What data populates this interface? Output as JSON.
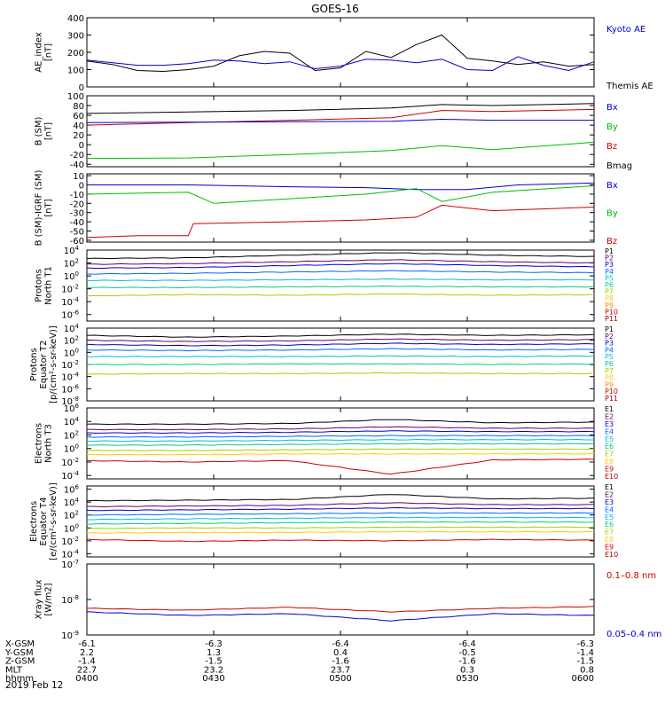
{
  "title": "GOES-16",
  "date_label": "2019 Feb 12",
  "ephemeris": {
    "rows": [
      {
        "label": "X-GSM",
        "values": [
          "-6.1",
          "-6.3",
          "-6.4",
          "-6.4",
          "-6.3"
        ]
      },
      {
        "label": "Y-GSM",
        "values": [
          "2.2",
          "1.3",
          "0.4",
          "-0.5",
          "-1.4"
        ]
      },
      {
        "label": "Z-GSM",
        "values": [
          "-1.4",
          "-1.5",
          "-1.6",
          "-1.6",
          "-1.5"
        ]
      },
      {
        "label": "MLT",
        "values": [
          "22.7",
          "23.2",
          "23.7",
          "0.3",
          "0.8"
        ]
      },
      {
        "label": "hhmm",
        "values": [
          "0400",
          "0430",
          "0500",
          "0530",
          "0600"
        ]
      }
    ]
  },
  "chart_data": [
    {
      "type": "line",
      "ylabel": [
        "AE_index",
        "[nT]"
      ],
      "y_ticks": [
        "400",
        "300",
        "200",
        "100",
        "0"
      ],
      "ylim": [
        0,
        400
      ],
      "x_ticks": [
        "0400",
        "0430",
        "0500",
        "0530",
        "0600"
      ],
      "legend": [
        {
          "label": "Kyoto AE",
          "color": "#0000cc"
        },
        {
          "label": "Themis AE",
          "color": "#000000"
        }
      ],
      "series": [
        {
          "name": "Themis AE",
          "color": "#000000",
          "x": [
            0,
            0.05,
            0.1,
            0.15,
            0.2,
            0.25,
            0.3,
            0.35,
            0.4,
            0.45,
            0.5,
            0.55,
            0.6,
            0.65,
            0.7,
            0.75,
            0.8,
            0.85,
            0.9,
            0.95,
            1
          ],
          "y": [
            150,
            130,
            95,
            90,
            100,
            120,
            180,
            205,
            195,
            95,
            110,
            205,
            170,
            245,
            300,
            165,
            150,
            130,
            145,
            120,
            130
          ]
        },
        {
          "name": "Kyoto AE",
          "color": "#0000cc",
          "x": [
            0,
            0.05,
            0.1,
            0.15,
            0.2,
            0.25,
            0.3,
            0.35,
            0.4,
            0.45,
            0.5,
            0.55,
            0.6,
            0.65,
            0.7,
            0.75,
            0.8,
            0.85,
            0.9,
            0.95,
            1
          ],
          "y": [
            155,
            140,
            125,
            125,
            135,
            155,
            150,
            135,
            145,
            105,
            120,
            160,
            155,
            140,
            160,
            100,
            95,
            175,
            125,
            95,
            145
          ]
        }
      ]
    },
    {
      "type": "line",
      "ylabel": [
        "B (SM)",
        "[nT]"
      ],
      "y_ticks": [
        "100",
        "80",
        "60",
        "40",
        "20",
        "0",
        "-20",
        "-40"
      ],
      "ylim": [
        -45,
        100
      ],
      "legend": [
        {
          "label": "Bx",
          "color": "#0000cc"
        },
        {
          "label": "By",
          "color": "#00bb00"
        },
        {
          "label": "Bz",
          "color": "#cc0000"
        },
        {
          "label": "Bmag",
          "color": "#000000"
        }
      ],
      "series": [
        {
          "name": "Bmag",
          "color": "#000000",
          "x": [
            0,
            0.2,
            0.4,
            0.6,
            0.7,
            0.8,
            1
          ],
          "y": [
            64,
            67,
            70,
            75,
            82,
            80,
            84
          ]
        },
        {
          "name": "Bz",
          "color": "#cc0000",
          "x": [
            0,
            0.2,
            0.4,
            0.6,
            0.7,
            0.8,
            1
          ],
          "y": [
            40,
            45,
            50,
            55,
            70,
            68,
            72
          ]
        },
        {
          "name": "Bx",
          "color": "#0000cc",
          "x": [
            0,
            0.2,
            0.4,
            0.6,
            0.7,
            0.8,
            1
          ],
          "y": [
            45,
            46,
            47,
            48,
            52,
            50,
            50
          ]
        },
        {
          "name": "By",
          "color": "#00bb00",
          "x": [
            0,
            0.2,
            0.4,
            0.6,
            0.7,
            0.8,
            1
          ],
          "y": [
            -28,
            -27,
            -20,
            -12,
            -2,
            -10,
            5
          ]
        }
      ]
    },
    {
      "type": "line",
      "ylabel": [
        "B (SM)-IGRF (SM)",
        "[nT]"
      ],
      "y_ticks": [
        "10",
        "0",
        "-10",
        "-20",
        "-30",
        "-40",
        "-50",
        "-60"
      ],
      "ylim": [
        -62,
        12
      ],
      "legend": [
        {
          "label": "Bx",
          "color": "#0000cc"
        },
        {
          "label": "By",
          "color": "#00bb00"
        },
        {
          "label": "Bz",
          "color": "#cc0000"
        }
      ],
      "series": [
        {
          "name": "Bx",
          "color": "#0000cc",
          "x": [
            0,
            0.2,
            0.4,
            0.55,
            0.65,
            0.75,
            0.85,
            1
          ],
          "y": [
            0,
            0,
            -2,
            -3,
            -5,
            -5,
            0,
            2
          ]
        },
        {
          "name": "By",
          "color": "#00bb00",
          "x": [
            0,
            0.2,
            0.25,
            0.4,
            0.55,
            0.65,
            0.7,
            0.8,
            1
          ],
          "y": [
            -10,
            -8,
            -20,
            -15,
            -10,
            -4,
            -18,
            -8,
            -1
          ]
        },
        {
          "name": "Bz",
          "color": "#cc0000",
          "x": [
            0,
            0.1,
            0.2,
            0.21,
            0.4,
            0.55,
            0.65,
            0.7,
            0.8,
            1
          ],
          "y": [
            -57,
            -55,
            -55,
            -42,
            -40,
            -38,
            -35,
            -22,
            -28,
            -24
          ]
        }
      ]
    },
    {
      "type": "line",
      "ylabel": [
        "Protons",
        "North T1"
      ],
      "y_ticks": [
        "10^4",
        "10^2",
        "10^0",
        "10^-2",
        "10^-4",
        "10^-6"
      ],
      "ylim_log10": [
        -7,
        4
      ],
      "legend": [
        {
          "label": "P1",
          "color": "#000000"
        },
        {
          "label": "P2",
          "color": "#660066"
        },
        {
          "label": "P3",
          "color": "#0000cc"
        },
        {
          "label": "P4",
          "color": "#0066ff"
        },
        {
          "label": "P5",
          "color": "#00bbdd"
        },
        {
          "label": "P6",
          "color": "#00cc88"
        },
        {
          "label": "P7",
          "color": "#aacc00"
        },
        {
          "label": "P8",
          "color": "#ffcc00"
        },
        {
          "label": "P9",
          "color": "#ff8800"
        },
        {
          "label": "P10",
          "color": "#cc0000"
        },
        {
          "label": "P11",
          "color": "#aa0000"
        }
      ],
      "series": [
        {
          "name": "P1",
          "color": "#000000",
          "log10_levels": [
            2.7,
            2.8,
            3.2,
            3.6,
            3.2,
            3.0
          ]
        },
        {
          "name": "P2",
          "color": "#660066",
          "log10_levels": [
            1.8,
            1.9,
            2.2,
            2.5,
            2.2,
            2.0
          ]
        },
        {
          "name": "P3",
          "color": "#0000cc",
          "log10_levels": [
            1.2,
            1.3,
            1.6,
            1.9,
            1.6,
            1.4
          ]
        },
        {
          "name": "P4",
          "color": "#0066ff",
          "log10_levels": [
            0.3,
            0.4,
            0.6,
            0.8,
            0.6,
            0.5
          ]
        },
        {
          "name": "P5",
          "color": "#00bbdd",
          "log10_levels": [
            -0.7,
            -0.7,
            -0.6,
            -0.5,
            -0.6,
            -0.6
          ]
        },
        {
          "name": "P6",
          "color": "#00cc88",
          "log10_levels": [
            -1.8,
            -1.8,
            -1.7,
            -1.6,
            -1.7,
            -1.7
          ]
        },
        {
          "name": "P7",
          "color": "#aacc00",
          "log10_levels": [
            -3.1,
            -2.9,
            -3.0,
            -2.8,
            -3.0,
            -2.9
          ]
        }
      ]
    },
    {
      "type": "line",
      "ylabel": [
        "Protons",
        "Equator T2",
        "[p/(cm²-s-sr-keV)]"
      ],
      "y_ticks": [
        "10^4",
        "10^2",
        "10^0",
        "10^-2",
        "10^-4",
        "10^-6",
        "10^-8"
      ],
      "ylim_log10": [
        -8,
        4
      ],
      "legend": [
        {
          "label": "P1",
          "color": "#000000"
        },
        {
          "label": "P2",
          "color": "#660066"
        },
        {
          "label": "P3",
          "color": "#0000cc"
        },
        {
          "label": "P4",
          "color": "#0066ff"
        },
        {
          "label": "P5",
          "color": "#00bbdd"
        },
        {
          "label": "P6",
          "color": "#00cc88"
        },
        {
          "label": "P7",
          "color": "#aacc00"
        },
        {
          "label": "P8",
          "color": "#ffcc00"
        },
        {
          "label": "P9",
          "color": "#ff8800"
        },
        {
          "label": "P10",
          "color": "#cc0000"
        },
        {
          "label": "P11",
          "color": "#aa0000"
        }
      ],
      "series": [
        {
          "name": "P1",
          "color": "#000000",
          "log10_levels": [
            2.8,
            2.5,
            2.7,
            3.0,
            2.8,
            2.9
          ]
        },
        {
          "name": "P2",
          "color": "#660066",
          "log10_levels": [
            2.0,
            1.8,
            1.9,
            2.2,
            2.0,
            2.1
          ]
        },
        {
          "name": "P3",
          "color": "#0000cc",
          "log10_levels": [
            1.3,
            1.1,
            1.2,
            1.5,
            1.3,
            1.4
          ]
        },
        {
          "name": "P4",
          "color": "#0066ff",
          "log10_levels": [
            0.4,
            0.3,
            0.4,
            0.6,
            0.4,
            0.5
          ]
        },
        {
          "name": "P5",
          "color": "#00bbdd",
          "log10_levels": [
            -0.7,
            -0.7,
            -0.7,
            -0.6,
            -0.7,
            -0.6
          ]
        },
        {
          "name": "P6",
          "color": "#00cc88",
          "log10_levels": [
            -2.0,
            -2.0,
            -1.9,
            -1.9,
            -2.0,
            -1.9
          ]
        },
        {
          "name": "P7",
          "color": "#aacc00",
          "log10_levels": [
            -3.6,
            -3.5,
            -3.5,
            -3.4,
            -3.5,
            -3.5
          ]
        }
      ]
    },
    {
      "type": "line",
      "ylabel": [
        "Electrons",
        "North T3"
      ],
      "y_ticks": [
        "10^6",
        "10^4",
        "10^2",
        "10^0",
        "10^-2",
        "10^-4"
      ],
      "ylim_log10": [
        -4.5,
        6
      ],
      "legend": [
        {
          "label": "E1",
          "color": "#000000"
        },
        {
          "label": "E2",
          "color": "#660066"
        },
        {
          "label": "E3",
          "color": "#0000cc"
        },
        {
          "label": "E4",
          "color": "#0066ff"
        },
        {
          "label": "E5",
          "color": "#00bbdd"
        },
        {
          "label": "E6",
          "color": "#00cc88"
        },
        {
          "label": "E7",
          "color": "#aacc00"
        },
        {
          "label": "E8",
          "color": "#ffcc00"
        },
        {
          "label": "E9",
          "color": "#cc0000"
        },
        {
          "label": "E10",
          "color": "#aa0000"
        }
      ],
      "series": [
        {
          "name": "E1",
          "color": "#000000",
          "log10_levels": [
            3.6,
            3.6,
            3.7,
            4.3,
            3.8,
            3.9
          ]
        },
        {
          "name": "E2",
          "color": "#660066",
          "log10_levels": [
            2.8,
            2.8,
            2.9,
            3.2,
            3.0,
            3.0
          ]
        },
        {
          "name": "E3",
          "color": "#0000cc",
          "log10_levels": [
            2.3,
            2.3,
            2.4,
            2.6,
            2.5,
            2.5
          ]
        },
        {
          "name": "E4",
          "color": "#0066ff",
          "log10_levels": [
            1.7,
            1.7,
            1.8,
            1.9,
            1.9,
            1.9
          ]
        },
        {
          "name": "E5",
          "color": "#00bbdd",
          "log10_levels": [
            1.1,
            1.1,
            1.2,
            1.3,
            1.3,
            1.3
          ]
        },
        {
          "name": "E6",
          "color": "#00cc88",
          "log10_levels": [
            0.5,
            0.5,
            0.6,
            0.7,
            0.7,
            0.7
          ]
        },
        {
          "name": "E7",
          "color": "#aacc00",
          "log10_levels": [
            -0.3,
            -0.3,
            -0.2,
            -0.1,
            -0.1,
            -0.1
          ]
        },
        {
          "name": "E8",
          "color": "#ffcc00",
          "log10_levels": [
            -0.9,
            -0.9,
            -0.8,
            -0.8,
            -0.8,
            -0.8
          ]
        },
        {
          "name": "E9",
          "color": "#cc0000",
          "log10_levels": [
            -1.8,
            -2.0,
            -1.8,
            -3.8,
            -1.7,
            -1.6
          ]
        }
      ]
    },
    {
      "type": "line",
      "ylabel": [
        "Electrons",
        "Equator T4",
        "[e/(cm²-s-sr-keV)]"
      ],
      "y_ticks": [
        "10^6",
        "10^4",
        "10^2",
        "10^0",
        "10^-2",
        "10^-4"
      ],
      "ylim_log10": [
        -4.5,
        6.5
      ],
      "legend": [
        {
          "label": "E1",
          "color": "#000000"
        },
        {
          "label": "E2",
          "color": "#660066"
        },
        {
          "label": "E3",
          "color": "#0000cc"
        },
        {
          "label": "E4",
          "color": "#0066ff"
        },
        {
          "label": "E5",
          "color": "#00bbdd"
        },
        {
          "label": "E6",
          "color": "#00cc88"
        },
        {
          "label": "E7",
          "color": "#aacc00"
        },
        {
          "label": "E8",
          "color": "#ffcc00"
        },
        {
          "label": "E9",
          "color": "#cc0000"
        },
        {
          "label": "E10",
          "color": "#aa0000"
        }
      ],
      "series": [
        {
          "name": "E1",
          "color": "#000000",
          "log10_levels": [
            4.2,
            4.3,
            4.4,
            5.2,
            4.5,
            4.6
          ]
        },
        {
          "name": "E2",
          "color": "#660066",
          "log10_levels": [
            3.3,
            3.4,
            3.5,
            3.9,
            3.6,
            3.6
          ]
        },
        {
          "name": "E3",
          "color": "#0000cc",
          "log10_levels": [
            2.7,
            2.8,
            2.9,
            3.1,
            3.0,
            3.0
          ]
        },
        {
          "name": "E4",
          "color": "#0066ff",
          "log10_levels": [
            2.0,
            2.1,
            2.2,
            2.3,
            2.3,
            2.3
          ]
        },
        {
          "name": "E5",
          "color": "#00bbdd",
          "log10_levels": [
            1.3,
            1.4,
            1.5,
            1.6,
            1.6,
            1.6
          ]
        },
        {
          "name": "E6",
          "color": "#00cc88",
          "log10_levels": [
            0.6,
            0.7,
            0.8,
            0.9,
            0.9,
            0.9
          ]
        },
        {
          "name": "E7",
          "color": "#aacc00",
          "log10_levels": [
            -0.1,
            0.0,
            0.0,
            0.1,
            0.1,
            0.1
          ]
        },
        {
          "name": "E8",
          "color": "#ffcc00",
          "log10_levels": [
            -0.8,
            -0.7,
            -0.7,
            -0.6,
            -0.6,
            -0.6
          ]
        },
        {
          "name": "E9",
          "color": "#cc0000",
          "log10_levels": [
            -1.8,
            -2.1,
            -1.9,
            -2.0,
            -1.8,
            -1.9
          ]
        }
      ]
    },
    {
      "type": "line",
      "ylabel": [
        "Xray flux",
        "[W/m2]"
      ],
      "y_ticks": [
        "10^-7",
        "10^-8",
        "10^-9"
      ],
      "ylim_log10": [
        -9,
        -7
      ],
      "legend": [
        {
          "label": "0.1–0.8 nm",
          "color": "#cc0000"
        },
        {
          "label": "0.05–0.4 nm",
          "color": "#0000cc"
        }
      ],
      "series": [
        {
          "name": "0.1–0.8 nm",
          "color": "#cc0000",
          "log10_levels": [
            -8.25,
            -8.3,
            -8.22,
            -8.35,
            -8.25,
            -8.2
          ]
        },
        {
          "name": "0.05–0.4 nm",
          "color": "#0000cc",
          "log10_levels": [
            -8.35,
            -8.45,
            -8.4,
            -8.6,
            -8.4,
            -8.45
          ]
        }
      ]
    }
  ]
}
